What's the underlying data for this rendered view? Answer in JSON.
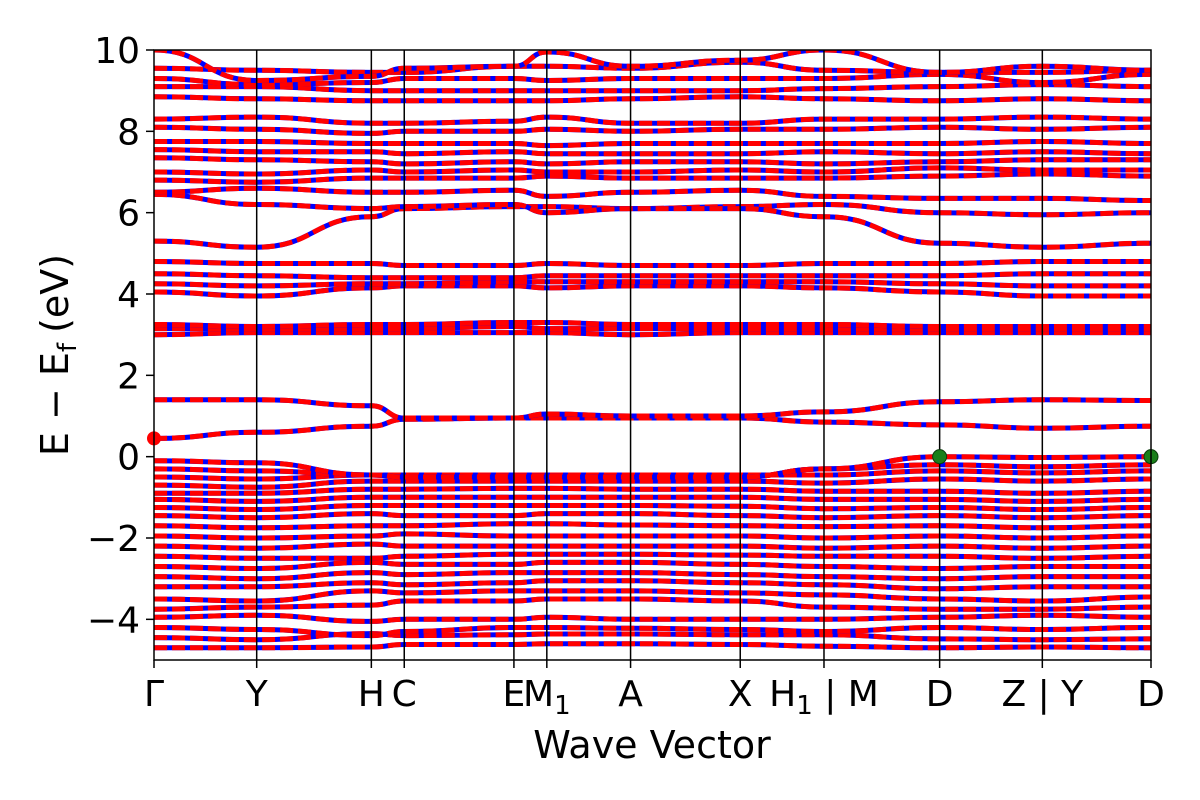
{
  "chart_data": {
    "type": "line",
    "title": "",
    "xlabel": "Wave Vector",
    "ylabel": {
      "main": "E − E",
      "sub": "f",
      "unit": "(eV)"
    },
    "ylim": [
      -5,
      10
    ],
    "yticks": [
      -4,
      -2,
      0,
      2,
      4,
      6,
      8,
      10
    ],
    "ytick_labels": [
      "−4",
      "−2",
      "0",
      "2",
      "4",
      "6",
      "8",
      "10"
    ],
    "x_range": [
      0,
      1
    ],
    "kpath": [
      {
        "pos": 0.0,
        "label": "Γ"
      },
      {
        "pos": 0.103,
        "label": "Y"
      },
      {
        "pos": 0.218,
        "label": "H"
      },
      {
        "pos": 0.251,
        "label": "C"
      },
      {
        "pos": 0.361,
        "label": "E"
      },
      {
        "pos": 0.394,
        "label": "M",
        "sub": "1"
      },
      {
        "pos": 0.478,
        "label": "A"
      },
      {
        "pos": 0.588,
        "label": "X"
      },
      {
        "pos": 0.672,
        "label": "H",
        "sub": "1",
        "suffix": "| M"
      },
      {
        "pos": 0.788,
        "label": "D"
      },
      {
        "pos": 0.891,
        "label": "Z",
        "suffix": "| Y"
      },
      {
        "pos": 1.0,
        "label": "D"
      }
    ],
    "series_colors": {
      "primary": "#ff0000",
      "secondary": "#0000ff"
    },
    "marker_color": "#1a7f1a",
    "vbm_markers": [
      {
        "k": 0.788,
        "E": 0.0
      },
      {
        "k": 1.0,
        "E": 0.0
      }
    ],
    "cbm_marker": {
      "k": 0.0,
      "E": 0.45,
      "color": "#ff0000"
    },
    "bands": [
      [
        -4.7,
        -4.7,
        -4.68,
        -4.62,
        -4.62,
        -4.6,
        -4.6,
        -4.62,
        -4.66,
        -4.7,
        -4.68,
        -4.7
      ],
      [
        -4.45,
        -4.5,
        -4.35,
        -4.4,
        -4.38,
        -4.36,
        -4.36,
        -4.38,
        -4.38,
        -4.48,
        -4.5,
        -4.48
      ],
      [
        -4.2,
        -4.25,
        -4.4,
        -4.3,
        -4.2,
        -4.2,
        -4.22,
        -4.25,
        -4.3,
        -4.2,
        -4.25,
        -4.2
      ],
      [
        -3.95,
        -3.9,
        -4.05,
        -4.0,
        -4.0,
        -3.95,
        -4.0,
        -4.0,
        -4.0,
        -3.95,
        -3.9,
        -3.95
      ],
      [
        -3.75,
        -3.7,
        -3.65,
        -3.55,
        -3.55,
        -3.5,
        -3.5,
        -3.55,
        -3.7,
        -3.75,
        -3.75,
        -3.7
      ],
      [
        -3.5,
        -3.55,
        -3.3,
        -3.35,
        -3.3,
        -3.3,
        -3.3,
        -3.35,
        -3.4,
        -3.5,
        -3.55,
        -3.45
      ],
      [
        -3.2,
        -3.2,
        -3.1,
        -3.15,
        -3.1,
        -3.05,
        -3.05,
        -3.1,
        -3.15,
        -3.25,
        -3.2,
        -3.2
      ],
      [
        -2.95,
        -3.0,
        -2.85,
        -2.9,
        -2.85,
        -2.85,
        -2.85,
        -2.9,
        -2.95,
        -3.0,
        -2.95,
        -2.95
      ],
      [
        -2.7,
        -2.75,
        -2.6,
        -2.65,
        -2.65,
        -2.6,
        -2.6,
        -2.65,
        -2.7,
        -2.75,
        -2.7,
        -2.7
      ],
      [
        -2.45,
        -2.5,
        -2.5,
        -2.45,
        -2.4,
        -2.4,
        -2.4,
        -2.42,
        -2.45,
        -2.45,
        -2.5,
        -2.45
      ],
      [
        -2.2,
        -2.25,
        -2.15,
        -2.2,
        -2.2,
        -2.2,
        -2.2,
        -2.2,
        -2.25,
        -2.2,
        -2.25,
        -2.2
      ],
      [
        -1.95,
        -2.0,
        -1.95,
        -1.9,
        -1.95,
        -1.95,
        -1.95,
        -1.95,
        -2.0,
        -1.95,
        -2.0,
        -1.95
      ],
      [
        -1.7,
        -1.75,
        -1.7,
        -1.7,
        -1.65,
        -1.65,
        -1.68,
        -1.7,
        -1.72,
        -1.7,
        -1.75,
        -1.7
      ],
      [
        -1.45,
        -1.5,
        -1.4,
        -1.45,
        -1.45,
        -1.4,
        -1.4,
        -1.45,
        -1.5,
        -1.45,
        -1.5,
        -1.45
      ],
      [
        -1.25,
        -1.3,
        -1.2,
        -1.2,
        -1.2,
        -1.2,
        -1.2,
        -1.22,
        -1.28,
        -1.25,
        -1.3,
        -1.25
      ],
      [
        -1.05,
        -1.1,
        -1.0,
        -1.0,
        -1.0,
        -1.0,
        -1.0,
        -1.0,
        -1.05,
        -1.05,
        -1.1,
        -1.05
      ],
      [
        -0.9,
        -0.9,
        -0.8,
        -0.8,
        -0.78,
        -0.78,
        -0.8,
        -0.8,
        -0.85,
        -0.85,
        -0.9,
        -0.85
      ],
      [
        -0.7,
        -0.75,
        -0.6,
        -0.6,
        -0.6,
        -0.6,
        -0.6,
        -0.6,
        -0.65,
        -0.55,
        -0.6,
        -0.55
      ],
      [
        -0.5,
        -0.55,
        -0.45,
        -0.45,
        -0.45,
        -0.45,
        -0.45,
        -0.45,
        -0.45,
        -0.35,
        -0.4,
        -0.35
      ],
      [
        -0.3,
        -0.35,
        -0.45,
        -0.5,
        -0.48,
        -0.48,
        -0.5,
        -0.5,
        -0.3,
        -0.2,
        -0.25,
        -0.2
      ],
      [
        -0.1,
        -0.15,
        -0.45,
        -0.5,
        -0.5,
        -0.5,
        -0.5,
        -0.5,
        -0.3,
        0.0,
        -0.02,
        0.0
      ],
      [
        0.45,
        0.6,
        0.75,
        0.92,
        0.95,
        0.95,
        0.95,
        0.95,
        0.85,
        0.78,
        0.7,
        0.75
      ],
      [
        1.4,
        1.4,
        1.25,
        0.95,
        0.95,
        1.05,
        1.0,
        1.0,
        1.1,
        1.35,
        1.4,
        1.38
      ],
      [
        3.0,
        3.05,
        3.05,
        3.05,
        3.05,
        3.05,
        3.0,
        3.05,
        3.05,
        3.05,
        3.05,
        3.05
      ],
      [
        3.15,
        3.15,
        3.15,
        3.15,
        3.2,
        3.15,
        3.15,
        3.15,
        3.15,
        3.15,
        3.15,
        3.15
      ],
      [
        3.25,
        3.2,
        3.25,
        3.25,
        3.3,
        3.3,
        3.25,
        3.25,
        3.25,
        3.2,
        3.2,
        3.2
      ],
      [
        4.05,
        3.95,
        4.15,
        4.2,
        4.2,
        4.15,
        4.2,
        4.2,
        4.15,
        4.05,
        3.95,
        3.95
      ],
      [
        4.25,
        4.2,
        4.25,
        4.25,
        4.3,
        4.3,
        4.3,
        4.3,
        4.3,
        4.25,
        4.2,
        4.2
      ],
      [
        4.5,
        4.45,
        4.4,
        4.4,
        4.4,
        4.45,
        4.45,
        4.45,
        4.45,
        4.45,
        4.5,
        4.5
      ],
      [
        4.8,
        4.75,
        4.75,
        4.7,
        4.7,
        4.75,
        4.7,
        4.7,
        4.75,
        4.75,
        4.8,
        4.8
      ],
      [
        5.3,
        5.15,
        5.9,
        6.1,
        6.15,
        6.15,
        6.1,
        6.15,
        6.2,
        6.0,
        5.95,
        6.0
      ],
      [
        6.45,
        6.2,
        6.1,
        6.15,
        6.2,
        6.0,
        6.1,
        6.1,
        5.9,
        5.25,
        5.15,
        5.25
      ],
      [
        6.5,
        6.6,
        6.5,
        6.5,
        6.55,
        6.4,
        6.5,
        6.55,
        6.4,
        6.35,
        6.35,
        6.3
      ],
      [
        6.8,
        6.75,
        6.85,
        6.85,
        6.85,
        6.9,
        6.85,
        6.85,
        6.85,
        6.9,
        6.95,
        6.9
      ],
      [
        7.0,
        6.95,
        7.05,
        7.0,
        7.05,
        7.0,
        7.0,
        7.05,
        7.0,
        7.1,
        7.05,
        7.05
      ],
      [
        7.35,
        7.3,
        7.25,
        7.2,
        7.25,
        7.2,
        7.25,
        7.25,
        7.2,
        7.25,
        7.3,
        7.3
      ],
      [
        7.55,
        7.5,
        7.5,
        7.45,
        7.5,
        7.45,
        7.45,
        7.45,
        7.5,
        7.45,
        7.5,
        7.45
      ],
      [
        7.75,
        7.75,
        7.7,
        7.7,
        7.7,
        7.65,
        7.7,
        7.7,
        7.7,
        7.7,
        7.75,
        7.7
      ],
      [
        8.1,
        8.05,
        7.95,
        8.0,
        8.0,
        8.05,
        8.0,
        8.05,
        8.05,
        8.1,
        8.05,
        8.1
      ],
      [
        8.3,
        8.35,
        8.2,
        8.2,
        8.25,
        8.35,
        8.2,
        8.2,
        8.3,
        8.3,
        8.35,
        8.3
      ],
      [
        8.85,
        8.8,
        8.75,
        8.75,
        8.75,
        8.75,
        8.8,
        8.85,
        8.8,
        8.75,
        8.8,
        8.75
      ],
      [
        9.1,
        9.1,
        9.0,
        9.0,
        9.0,
        9.0,
        9.0,
        9.0,
        9.05,
        9.1,
        9.15,
        9.1
      ],
      [
        9.3,
        9.15,
        9.2,
        9.3,
        9.3,
        9.25,
        9.3,
        9.3,
        9.3,
        9.4,
        9.2,
        9.4
      ],
      [
        9.55,
        9.5,
        9.45,
        9.45,
        9.6,
        9.6,
        9.55,
        9.7,
        9.5,
        9.45,
        9.45,
        9.5
      ],
      [
        10.0,
        9.25,
        9.35,
        9.55,
        9.6,
        9.95,
        9.6,
        9.75,
        10.0,
        9.45,
        9.6,
        9.5
      ]
    ]
  }
}
